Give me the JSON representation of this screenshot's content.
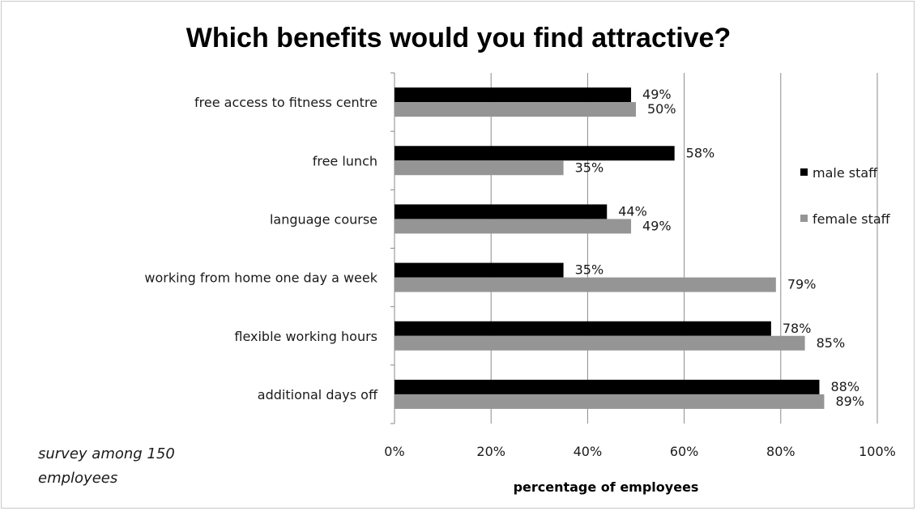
{
  "chart_data": {
    "type": "bar",
    "orientation": "horizontal",
    "title": "Which benefits would you find attractive?",
    "xlabel": "percentage of employees",
    "ylabel": "",
    "note_lines": [
      "survey among 150",
      "employees"
    ],
    "categories": [
      "free access to fitness centre",
      "free lunch",
      "language course",
      "working from home one day a week",
      "flexible working hours",
      "additional days off"
    ],
    "series": [
      {
        "name": "male staff",
        "color": "#000000",
        "values": [
          49,
          58,
          44,
          35,
          78,
          88
        ],
        "labels": [
          "49%",
          "58%",
          "44%",
          "35%",
          "78%",
          "88%"
        ]
      },
      {
        "name": "female staff",
        "color": "#959595",
        "values": [
          50,
          35,
          49,
          79,
          85,
          89
        ],
        "labels": [
          "50%",
          "35%",
          "49%",
          "79%",
          "85%",
          "89%"
        ]
      }
    ],
    "xlim": [
      0,
      100
    ],
    "xticks": [
      "0%",
      "20%",
      "40%",
      "60%",
      "80%",
      "100%"
    ],
    "grid": true,
    "legend_position": "right"
  }
}
